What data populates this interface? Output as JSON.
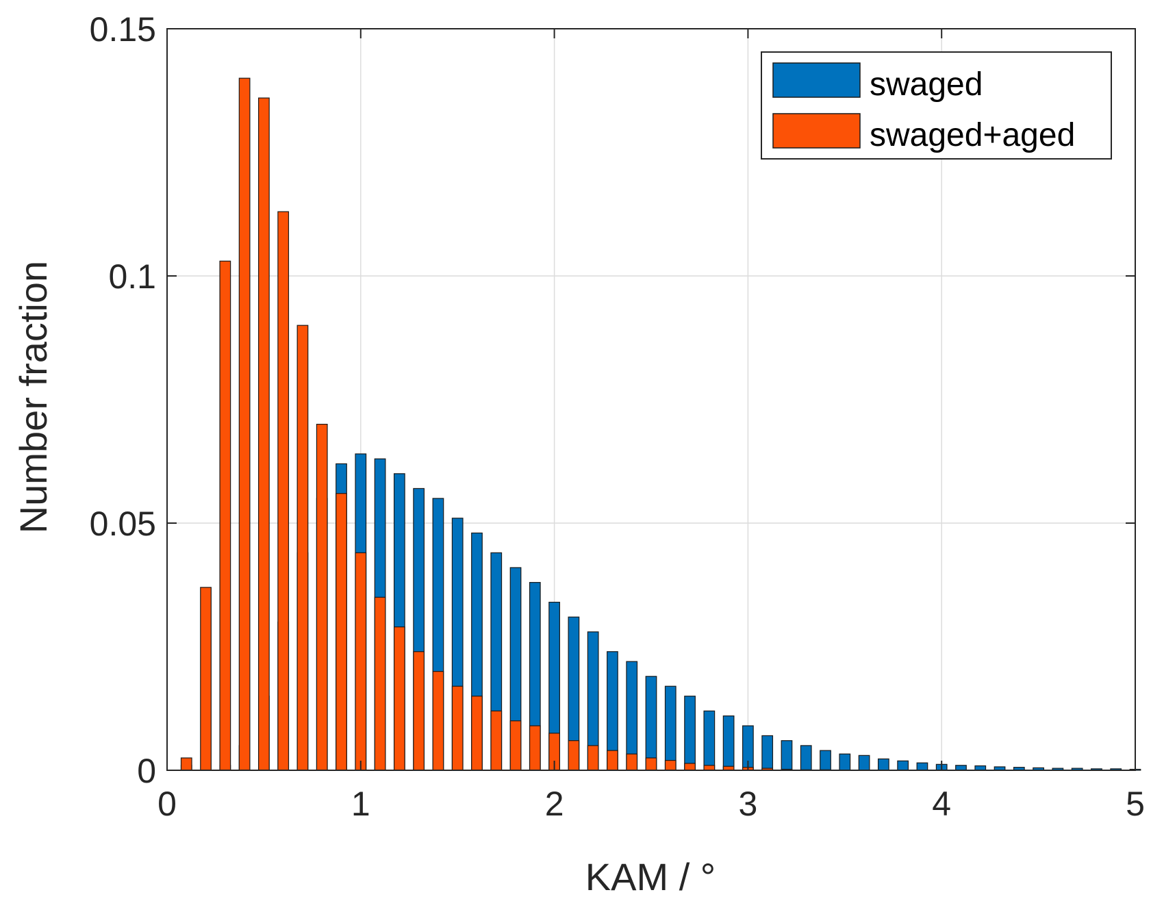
{
  "chart_data": {
    "type": "bar",
    "title": "",
    "xlabel": "KAM / °",
    "ylabel": "Number fraction",
    "xlim": [
      0,
      5
    ],
    "ylim": [
      0,
      0.15
    ],
    "xticks": [
      0,
      1,
      2,
      3,
      4,
      5
    ],
    "xtick_labels": [
      "0",
      "1",
      "2",
      "3",
      "4",
      "5"
    ],
    "yticks": [
      0,
      0.05,
      0.1,
      0.15
    ],
    "ytick_labels": [
      "0",
      "0.05",
      "0.1",
      "0.15"
    ],
    "grid": true,
    "legend_position": "top-right",
    "bin_centers": [
      0.05,
      0.15,
      0.25,
      0.35,
      0.45,
      0.55,
      0.65,
      0.75,
      0.85,
      0.95,
      1.05,
      1.15,
      1.25,
      1.35,
      1.45,
      1.55,
      1.65,
      1.75,
      1.85,
      1.95,
      2.05,
      2.15,
      2.25,
      2.35,
      2.45,
      2.55,
      2.65,
      2.75,
      2.85,
      2.95,
      3.05,
      3.15,
      3.25,
      3.35,
      3.45,
      3.55,
      3.65,
      3.75,
      3.85,
      3.95,
      4.05,
      4.15,
      4.25,
      4.35,
      4.45,
      4.55,
      4.65,
      4.75,
      4.85,
      4.95
    ],
    "series": [
      {
        "name": "swaged",
        "color": "#0072bd",
        "values": [
          0.001,
          0.0,
          0.001,
          0.005,
          0.015,
          0.03,
          0.044,
          0.055,
          0.062,
          0.064,
          0.063,
          0.06,
          0.057,
          0.055,
          0.051,
          0.048,
          0.044,
          0.041,
          0.038,
          0.034,
          0.031,
          0.028,
          0.024,
          0.022,
          0.019,
          0.017,
          0.015,
          0.012,
          0.011,
          0.009,
          0.007,
          0.006,
          0.005,
          0.004,
          0.0033,
          0.003,
          0.0023,
          0.0019,
          0.0015,
          0.0012,
          0.001,
          0.0009,
          0.0007,
          0.0006,
          0.0005,
          0.0004,
          0.0004,
          0.0003,
          0.0003,
          0.0002
        ]
      },
      {
        "name": "swaged+aged",
        "color": "#fc5206",
        "values": [
          0.0,
          0.0025,
          0.037,
          0.103,
          0.14,
          0.136,
          0.113,
          0.09,
          0.07,
          0.056,
          0.044,
          0.035,
          0.029,
          0.024,
          0.02,
          0.017,
          0.015,
          0.012,
          0.01,
          0.009,
          0.0075,
          0.006,
          0.005,
          0.004,
          0.0033,
          0.0025,
          0.002,
          0.0014,
          0.001,
          0.0008,
          0.0006,
          0.0004,
          0.0002,
          0.0001,
          0.0001,
          0.0,
          0.0,
          0.0,
          0.0,
          0.0,
          0.0,
          0.0,
          0.0,
          0.0,
          0.0,
          0.0,
          0.0,
          0.0,
          0.0,
          0.0
        ]
      }
    ]
  }
}
